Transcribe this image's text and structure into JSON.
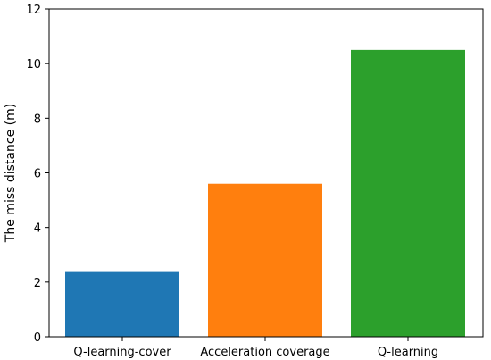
{
  "chart_data": {
    "type": "bar",
    "categories": [
      "Q-learning-cover",
      "Acceleration coverage",
      "Q-learning"
    ],
    "values": [
      2.4,
      5.6,
      10.5
    ],
    "colors": [
      "#1f77b4",
      "#ff7f0e",
      "#2ca02c"
    ],
    "title": "",
    "xlabel": "",
    "ylabel": "The miss distance (m)",
    "ylim": [
      0,
      12
    ],
    "yticks": [
      0,
      2,
      4,
      6,
      8,
      10,
      12
    ],
    "grid": false
  }
}
